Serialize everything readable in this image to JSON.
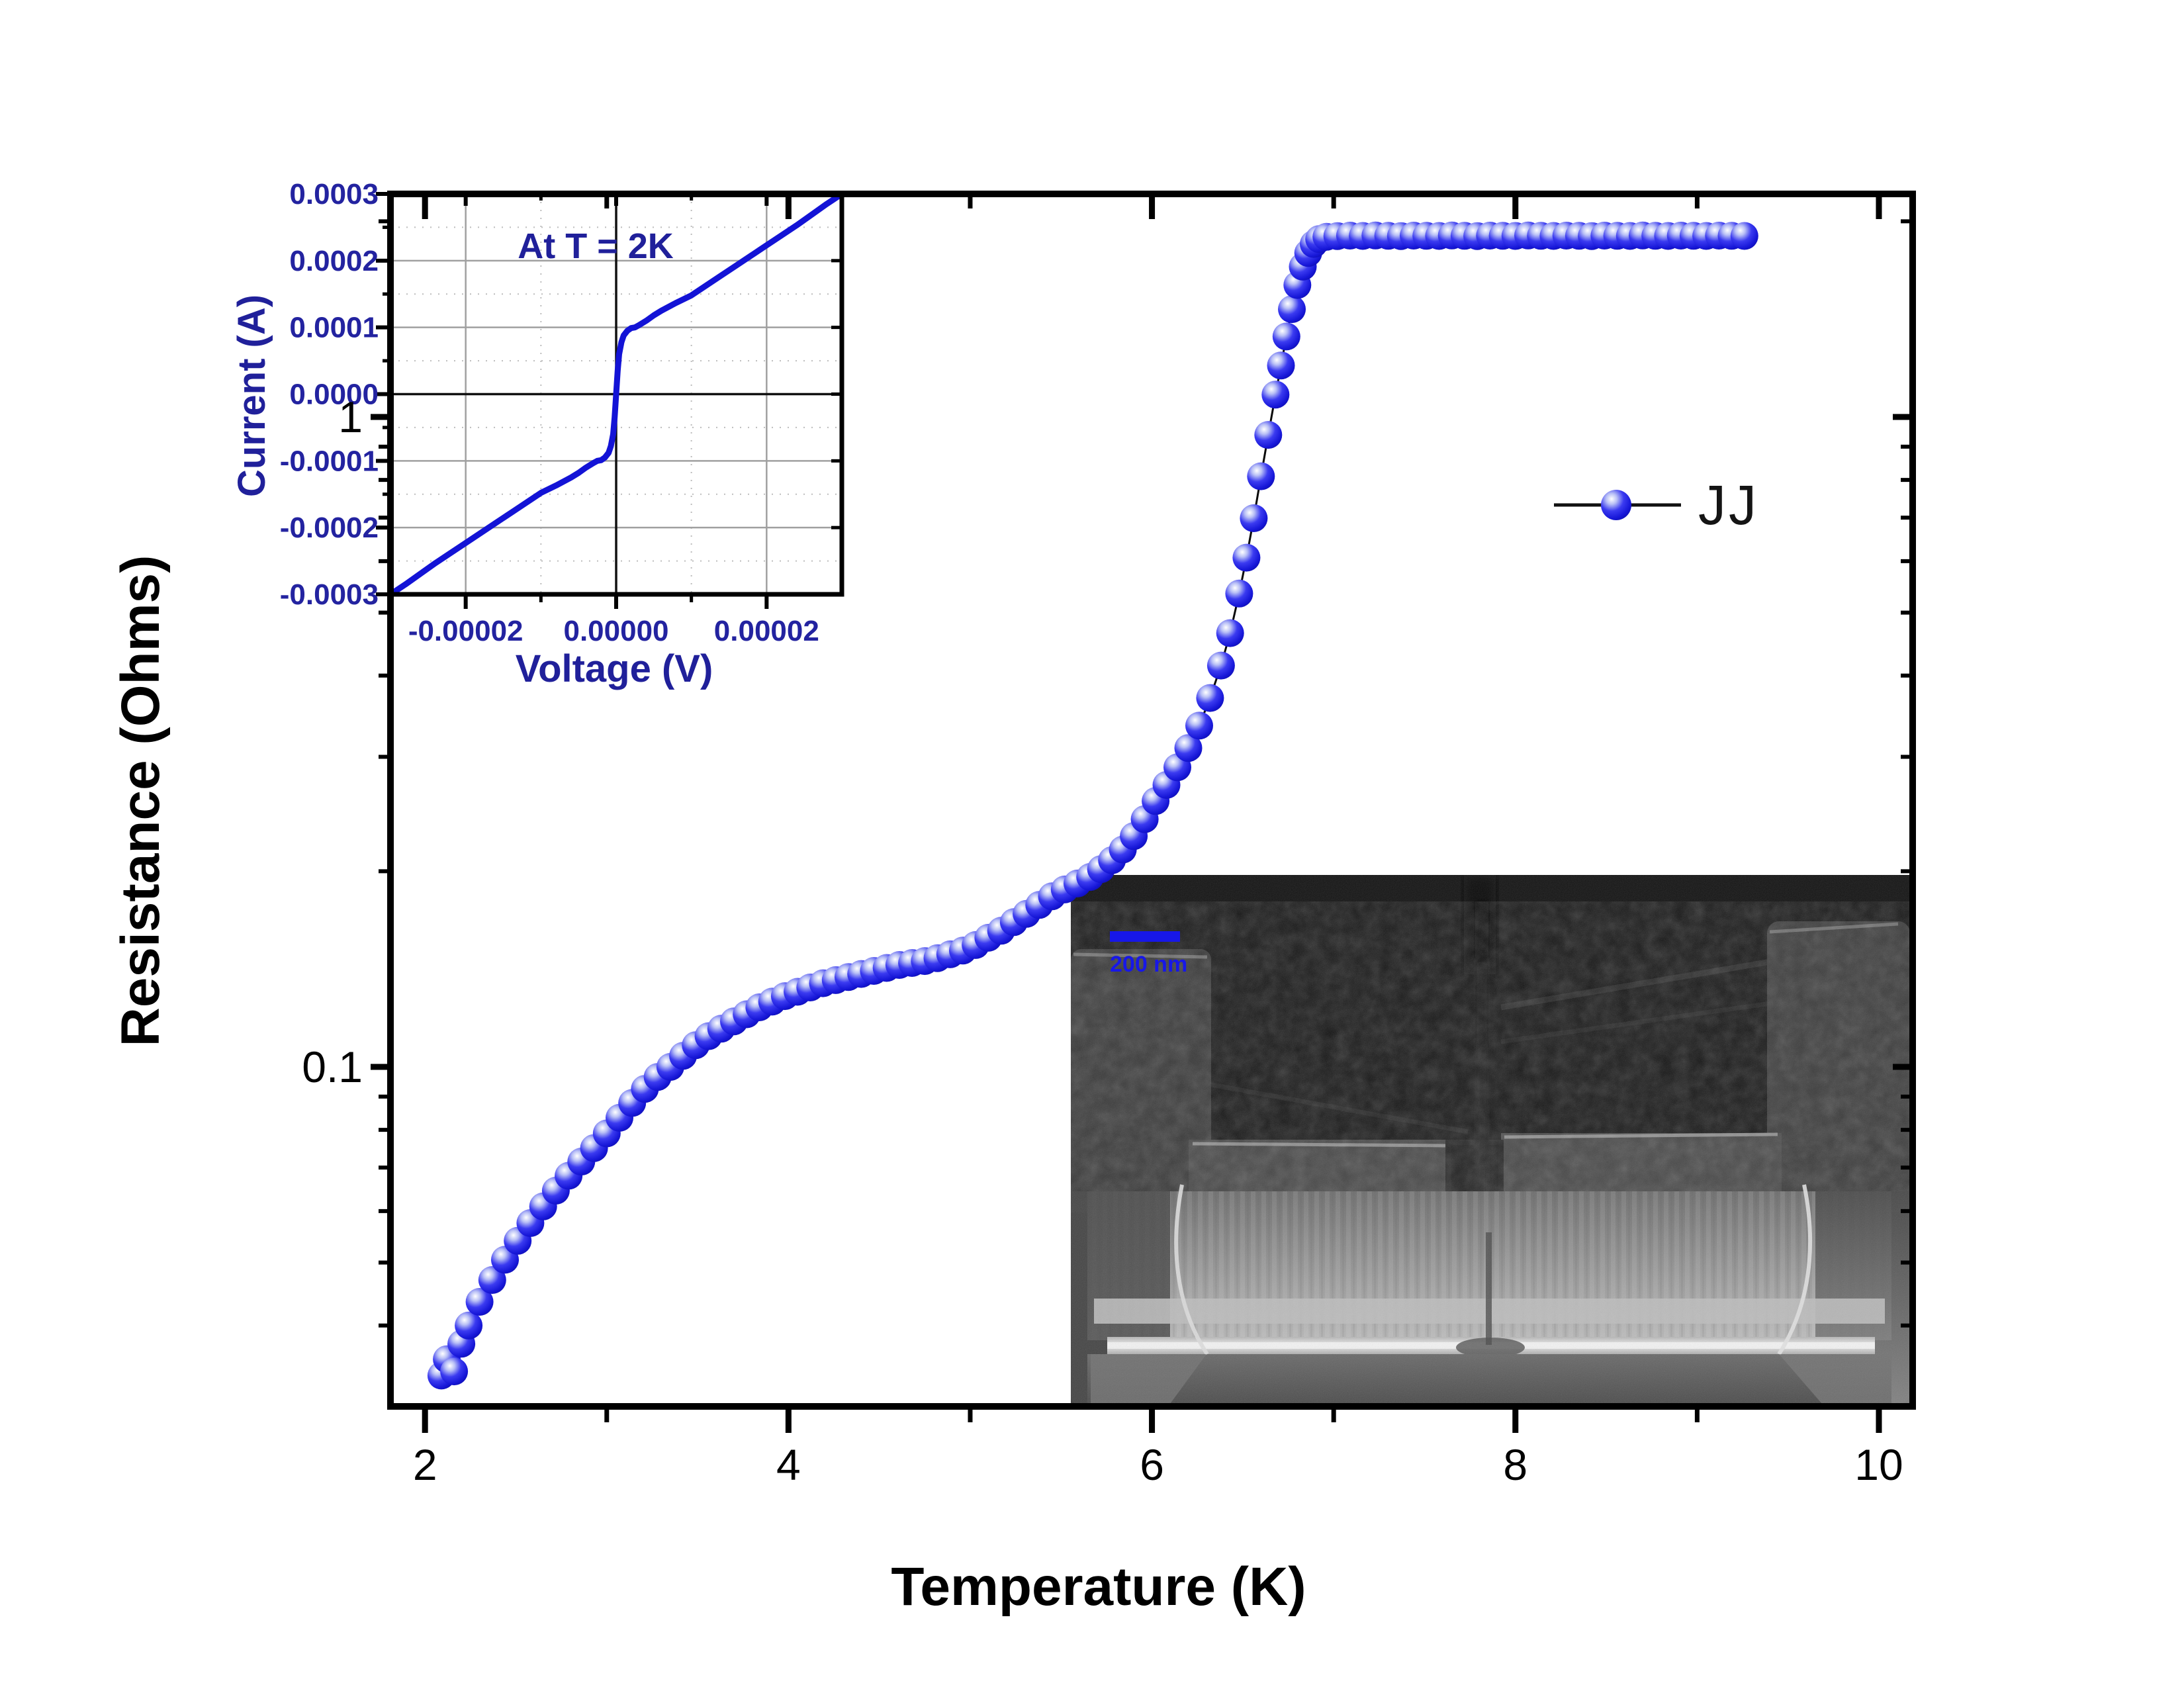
{
  "figure": {
    "background": "#ffffff"
  },
  "colors": {
    "marker_blue": "#1b1bdf",
    "curve_blue": "#1313d6",
    "navy_text": "#20209a",
    "axis_black": "#000000",
    "scalebar_blue": "#1717e8"
  },
  "chart_data": [
    {
      "type": "scatter",
      "title": "",
      "xlabel": "Temperature (K)",
      "ylabel": "Resistance (Ohms)",
      "x_scale": "linear",
      "y_scale": "log",
      "xlim": [
        1.81,
        10.18
      ],
      "ylim": [
        0.03,
        2.2
      ],
      "x_ticks": [
        2,
        4,
        6,
        8,
        10
      ],
      "x_minor_ticks": [
        3,
        5,
        7,
        9
      ],
      "y_ticks": [
        1,
        0.1
      ],
      "y_minor_ticks": [
        2,
        0.9,
        0.8,
        0.7,
        0.6,
        0.5,
        0.4,
        0.3,
        0.2,
        0.09,
        0.08,
        0.07,
        0.06,
        0.05,
        0.04
      ],
      "grid": "off",
      "legend": {
        "label": "JJ",
        "position": "right-center",
        "marker": "blue-sphere"
      },
      "series": [
        {
          "name": "JJ",
          "points": [
            [
              2.09,
              0.0335
            ],
            [
              2.12,
              0.0355
            ],
            [
              2.16,
              0.034
            ],
            [
              2.2,
              0.0375
            ],
            [
              2.24,
              0.04
            ],
            [
              2.3,
              0.0435
            ],
            [
              2.37,
              0.047
            ],
            [
              2.44,
              0.0505
            ],
            [
              2.51,
              0.054
            ],
            [
              2.58,
              0.0575
            ],
            [
              2.65,
              0.061
            ],
            [
              2.72,
              0.0645
            ],
            [
              2.79,
              0.068
            ],
            [
              2.86,
              0.0715
            ],
            [
              2.93,
              0.075
            ],
            [
              3.0,
              0.079
            ],
            [
              3.07,
              0.0835
            ],
            [
              3.14,
              0.088
            ],
            [
              3.21,
              0.0925
            ],
            [
              3.28,
              0.0965
            ],
            [
              3.35,
              0.1
            ],
            [
              3.42,
              0.104
            ],
            [
              3.49,
              0.108
            ],
            [
              3.56,
              0.1115
            ],
            [
              3.63,
              0.1145
            ],
            [
              3.7,
              0.1175
            ],
            [
              3.77,
              0.1205
            ],
            [
              3.84,
              0.1235
            ],
            [
              3.91,
              0.126
            ],
            [
              3.98,
              0.1285
            ],
            [
              4.05,
              0.1305
            ],
            [
              4.12,
              0.1325
            ],
            [
              4.19,
              0.1345
            ],
            [
              4.26,
              0.136
            ],
            [
              4.33,
              0.1375
            ],
            [
              4.4,
              0.139
            ],
            [
              4.47,
              0.1405
            ],
            [
              4.54,
              0.142
            ],
            [
              4.61,
              0.1435
            ],
            [
              4.68,
              0.1445
            ],
            [
              4.75,
              0.1455
            ],
            [
              4.82,
              0.147
            ],
            [
              4.89,
              0.149
            ],
            [
              4.96,
              0.151
            ],
            [
              5.03,
              0.154
            ],
            [
              5.1,
              0.158
            ],
            [
              5.17,
              0.162
            ],
            [
              5.24,
              0.167
            ],
            [
              5.31,
              0.172
            ],
            [
              5.38,
              0.1775
            ],
            [
              5.45,
              0.183
            ],
            [
              5.52,
              0.1875
            ],
            [
              5.59,
              0.1915
            ],
            [
              5.66,
              0.196
            ],
            [
              5.72,
              0.2015
            ],
            [
              5.78,
              0.208
            ],
            [
              5.84,
              0.216
            ],
            [
              5.9,
              0.2265
            ],
            [
              5.96,
              0.2405
            ],
            [
              6.02,
              0.2565
            ],
            [
              6.08,
              0.2715
            ],
            [
              6.14,
              0.289
            ],
            [
              6.2,
              0.3095
            ],
            [
              6.26,
              0.335
            ],
            [
              6.32,
              0.3695
            ],
            [
              6.38,
              0.4145
            ],
            [
              6.43,
              0.465
            ],
            [
              6.48,
              0.535
            ],
            [
              6.52,
              0.6075
            ],
            [
              6.56,
              0.6985
            ],
            [
              6.6,
              0.8105
            ],
            [
              6.64,
              0.9385
            ],
            [
              6.68,
              1.0825
            ],
            [
              6.71,
              1.2
            ],
            [
              6.74,
              1.33
            ],
            [
              6.77,
              1.465
            ],
            [
              6.8,
              1.596
            ],
            [
              6.83,
              1.703
            ],
            [
              6.86,
              1.788
            ],
            [
              6.89,
              1.846
            ],
            [
              6.92,
              1.878
            ],
            [
              6.96,
              1.893
            ],
            [
              7.02,
              1.898
            ],
            [
              7.09,
              1.901
            ],
            [
              7.16,
              1.899
            ],
            [
              7.23,
              1.902
            ],
            [
              7.3,
              1.9
            ],
            [
              7.37,
              1.898
            ],
            [
              7.44,
              1.901
            ],
            [
              7.51,
              1.9
            ],
            [
              7.58,
              1.899
            ],
            [
              7.65,
              1.902
            ],
            [
              7.72,
              1.9
            ],
            [
              7.79,
              1.898
            ],
            [
              7.86,
              1.901
            ],
            [
              7.93,
              1.9
            ],
            [
              8.0,
              1.899
            ],
            [
              8.07,
              1.902
            ],
            [
              8.14,
              1.9
            ],
            [
              8.21,
              1.899
            ],
            [
              8.28,
              1.901
            ],
            [
              8.35,
              1.9
            ],
            [
              8.42,
              1.898
            ],
            [
              8.49,
              1.901
            ],
            [
              8.56,
              1.9
            ],
            [
              8.63,
              1.899
            ],
            [
              8.7,
              1.902
            ],
            [
              8.77,
              1.9
            ],
            [
              8.84,
              1.899
            ],
            [
              8.91,
              1.901
            ],
            [
              8.98,
              1.9
            ],
            [
              9.05,
              1.899
            ],
            [
              9.12,
              1.901
            ],
            [
              9.19,
              1.9
            ],
            [
              9.26,
              1.899
            ]
          ]
        }
      ]
    },
    {
      "type": "line",
      "title": "",
      "annotation": "At T = 2K",
      "xlabel": "Voltage (V)",
      "ylabel": "Current (A)",
      "xlim": [
        -3e-05,
        3e-05
      ],
      "ylim": [
        -0.0003,
        0.0003
      ],
      "x_ticks": [
        -2e-05,
        0.0,
        2e-05
      ],
      "x_tick_labels": [
        "-0.00002",
        "0.00000",
        "0.00002"
      ],
      "x_minor_ticks": [
        -1e-05,
        1e-05
      ],
      "y_ticks": [
        0.0003,
        0.0002,
        0.0001,
        0.0,
        -0.0001,
        -0.0002,
        -0.0003
      ],
      "y_tick_labels": [
        "0.0003",
        "0.0002",
        "0.0001",
        "0.0000",
        "-0.0001",
        "-0.0002",
        "-0.0003"
      ],
      "y_minor_ticks": [
        0.00025,
        0.00015,
        5e-05,
        -5e-05,
        -0.00015,
        -0.00025
      ],
      "grid": "major-solid, minor-dotted, zero-lines-black",
      "series": [
        {
          "name": "IV at 2K",
          "points": [
            [
              -3e-05,
              -0.0003
            ],
            [
              -2.8e-05,
              -0.000285
            ],
            [
              -2.6e-05,
              -0.000269
            ],
            [
              -2.4e-05,
              -0.000253
            ],
            [
              -2.2e-05,
              -0.000238
            ],
            [
              -2e-05,
              -0.000223
            ],
            [
              -1.8e-05,
              -0.000208
            ],
            [
              -1.6e-05,
              -0.000193
            ],
            [
              -1.4e-05,
              -0.000178
            ],
            [
              -1.2e-05,
              -0.000163
            ],
            [
              -1e-05,
              -0.000148
            ],
            [
              -8e-06,
              -0.000137
            ],
            [
              -6e-06,
              -0.000125
            ],
            [
              -5e-06,
              -0.000118
            ],
            [
              -4e-06,
              -0.00011
            ],
            [
              -3e-06,
              -0.000103
            ],
            [
              -2.5e-06,
              -0.0001
            ],
            [
              -2e-06,
              -9.9e-05
            ],
            [
              -1.5e-06,
              -9.5e-05
            ],
            [
              -1e-06,
              -8.8e-05
            ],
            [
              -7e-07,
              -7.8e-05
            ],
            [
              -4e-07,
              -6e-05
            ],
            [
              -2e-07,
              -3.5e-05
            ],
            [
              0.0,
              0.0
            ],
            [
              2e-07,
              3.5e-05
            ],
            [
              4e-07,
              6e-05
            ],
            [
              7e-07,
              7.8e-05
            ],
            [
              1e-06,
              8.8e-05
            ],
            [
              1.5e-06,
              9.5e-05
            ],
            [
              2e-06,
              9.9e-05
            ],
            [
              2.5e-06,
              0.0001
            ],
            [
              3e-06,
              0.000103
            ],
            [
              4e-06,
              0.00011
            ],
            [
              5e-06,
              0.000118
            ],
            [
              6e-06,
              0.000125
            ],
            [
              8e-06,
              0.000137
            ],
            [
              1e-05,
              0.000148
            ],
            [
              1.2e-05,
              0.000163
            ],
            [
              1.4e-05,
              0.000178
            ],
            [
              1.6e-05,
              0.000193
            ],
            [
              1.8e-05,
              0.000208
            ],
            [
              2e-05,
              0.000223
            ],
            [
              2.2e-05,
              0.000238
            ],
            [
              2.4e-05,
              0.000253
            ],
            [
              2.6e-05,
              0.000269
            ],
            [
              2.8e-05,
              0.000285
            ],
            [
              3e-05,
              0.0003
            ]
          ]
        }
      ]
    }
  ],
  "sem_inset": {
    "scale_bar_label": "200 nm"
  }
}
